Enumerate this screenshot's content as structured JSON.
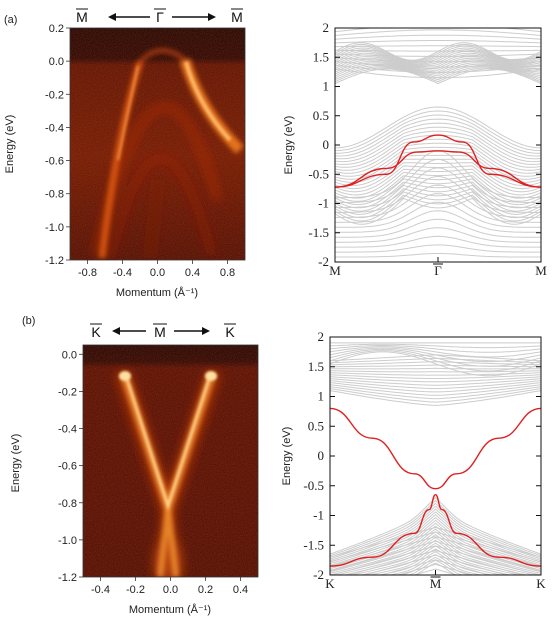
{
  "panel_labels": {
    "a": "(a)",
    "b": "(b)"
  },
  "arpes_a": {
    "kpath": {
      "left": "M",
      "center": "Γ",
      "right": "M"
    },
    "xlabel": "Momentum (Å⁻¹)",
    "ylabel": "Energy (eV)",
    "xticks": [
      "-0.8",
      "-0.4",
      "0.0",
      "0.4",
      "0.8"
    ],
    "yticks": [
      "0.2",
      "0.0",
      "-0.2",
      "-0.4",
      "-0.6",
      "-0.8",
      "-1.0",
      "-1.2"
    ]
  },
  "arpes_b": {
    "kpath": {
      "left": "K",
      "center": "M",
      "right": "K"
    },
    "xlabel": "Momentum (Å⁻¹)",
    "ylabel": "Energy (eV)",
    "xticks": [
      "-0.4",
      "-0.2",
      "0.0",
      "0.2",
      "0.4"
    ],
    "yticks": [
      "0.0",
      "-0.2",
      "-0.4",
      "-0.6",
      "-0.8",
      "-1.0",
      "-1.2"
    ]
  },
  "bands_a": {
    "ylabel": "Energy (eV)",
    "yticks": [
      "2",
      "1.5",
      "1",
      "0.5",
      "0",
      "-0.5",
      "-1",
      "-1.5",
      "-2"
    ],
    "xticks": [
      "M",
      "Γ",
      "M"
    ]
  },
  "bands_b": {
    "ylabel": "Energy (eV)",
    "yticks": [
      "2",
      "1.5",
      "1",
      "0.5",
      "0",
      "-0.5",
      "-1",
      "-1.5",
      "-2"
    ],
    "xticks": [
      "K",
      "M",
      "K"
    ]
  },
  "chart_data": [
    {
      "type": "heatmap",
      "panel": "a-left",
      "xlabel": "Momentum (Å⁻¹)",
      "ylabel": "Energy (eV)",
      "xlim": [
        -1.0,
        1.0
      ],
      "ylim": [
        -1.2,
        0.2
      ],
      "bands": [
        {
          "kind": "parabola",
          "apex_k": -0.05,
          "apex_E": -0.02,
          "curvature": -3.2
        },
        {
          "kind": "parabola",
          "apex_k": 0.0,
          "apex_E": -0.25,
          "curvature": -1.4
        },
        {
          "kind": "parabola",
          "apex_k": 0.0,
          "apex_E": -0.55,
          "curvature": -0.9
        }
      ],
      "fermi_level": 0.0
    },
    {
      "type": "line",
      "panel": "a-right",
      "ylabel": "Energy (eV)",
      "ylim": [
        -2,
        2
      ],
      "x_labels": [
        "M",
        "Γ",
        "M"
      ],
      "highlighted_series": [
        {
          "points": [
            [
              0,
              -0.72
            ],
            [
              0.25,
              -0.5
            ],
            [
              0.38,
              0.05
            ],
            [
              0.5,
              0.17
            ],
            [
              0.62,
              0.05
            ],
            [
              0.75,
              -0.5
            ],
            [
              1,
              -0.72
            ]
          ]
        },
        {
          "points": [
            [
              0,
              -0.72
            ],
            [
              0.25,
              -0.4
            ],
            [
              0.4,
              -0.12
            ],
            [
              0.5,
              -0.1
            ],
            [
              0.6,
              -0.12
            ],
            [
              0.75,
              -0.4
            ],
            [
              1,
              -0.72
            ]
          ]
        }
      ],
      "background_color": "#cccccc",
      "highlight_color": "#e02020"
    },
    {
      "type": "heatmap",
      "panel": "b-left",
      "xlabel": "Momentum (Å⁻¹)",
      "ylabel": "Energy (eV)",
      "xlim": [
        -0.5,
        0.5
      ],
      "ylim": [
        -1.2,
        0.05
      ],
      "bands": [
        {
          "kind": "dirac",
          "dirac_point_k": 0.0,
          "dirac_point_E": -0.82,
          "k_at_fermi": 0.26
        }
      ],
      "fermi_level": 0.0
    },
    {
      "type": "line",
      "panel": "b-right",
      "ylabel": "Energy (eV)",
      "ylim": [
        -2,
        2
      ],
      "x_labels": [
        "K",
        "M",
        "K"
      ],
      "highlighted_series": [
        {
          "points": [
            [
              0,
              0.8
            ],
            [
              0.2,
              0.3
            ],
            [
              0.4,
              -0.3
            ],
            [
              0.5,
              -0.55
            ],
            [
              0.6,
              -0.3
            ],
            [
              0.8,
              0.3
            ],
            [
              1,
              0.8
            ]
          ]
        },
        {
          "points": [
            [
              0,
              -1.85
            ],
            [
              0.2,
              -1.7
            ],
            [
              0.4,
              -1.3
            ],
            [
              0.47,
              -0.9
            ],
            [
              0.5,
              -0.65
            ],
            [
              0.53,
              -0.9
            ],
            [
              0.6,
              -1.3
            ],
            [
              0.8,
              -1.7
            ],
            [
              1,
              -1.85
            ]
          ]
        }
      ],
      "background_color": "#cccccc",
      "highlight_color": "#e02020"
    }
  ]
}
